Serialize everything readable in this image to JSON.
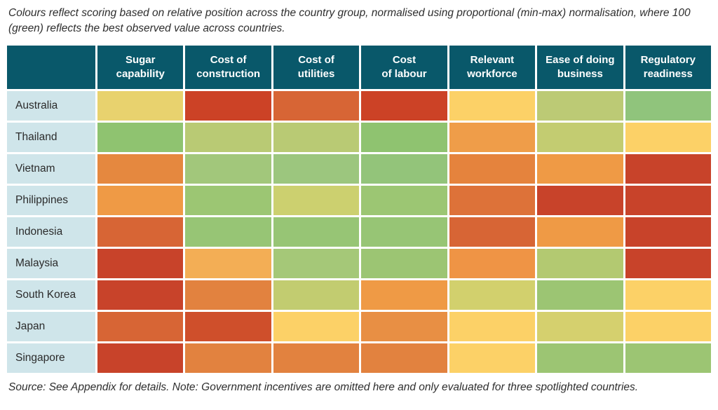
{
  "intro_note": "Colours reflect scoring based on relative position across the country group, normalised using proportional (min-max) normalisation, where 100 (green) reflects the best observed value across countries.",
  "source_note": "Source: See Appendix for details. Note: Government incentives are omitted here and only evaluated for three spotlighted countries.",
  "colors": {
    "header_bg": "#09586a",
    "header_text": "#ffffff",
    "row_label_bg": "#cfe5ea",
    "row_label_text": "#2b2b2b",
    "grid_gap": "#ffffff",
    "scale_best": "#8fc370",
    "scale_worst": "#c8432a"
  },
  "chart_data": {
    "type": "heatmap",
    "columns": [
      "Sugar\ncapability",
      "Cost of\nconstruction",
      "Cost of\nutilities",
      "Cost\nof labour",
      "Relevant\nworkforce",
      "Ease of doing\nbusiness",
      "Regulatory\nreadiness"
    ],
    "rows": [
      {
        "country": "Australia",
        "cell_colors": [
          "#e8d26e",
          "#cc4226",
          "#d76535",
          "#cc4226",
          "#fcd167",
          "#bcca75",
          "#90c47c"
        ]
      },
      {
        "country": "Thailand",
        "cell_colors": [
          "#8fc370",
          "#b9ca74",
          "#b9ca74",
          "#8fc370",
          "#ef9d49",
          "#c3cc71",
          "#fcd167"
        ]
      },
      {
        "country": "Vietnam",
        "cell_colors": [
          "#e5883f",
          "#a2c77b",
          "#9cc67e",
          "#93c47a",
          "#e5833d",
          "#ef9a45",
          "#c8432a"
        ]
      },
      {
        "country": "Philippines",
        "cell_colors": [
          "#ef9a45",
          "#9cc673",
          "#ccd06f",
          "#9cc673",
          "#dd7239",
          "#c8432a",
          "#c8432a"
        ]
      },
      {
        "country": "Indonesia",
        "cell_colors": [
          "#d76535",
          "#97c575",
          "#97c575",
          "#97c575",
          "#d76535",
          "#ef9a45",
          "#c8432a"
        ]
      },
      {
        "country": "Malaysia",
        "cell_colors": [
          "#c8432a",
          "#f3ae55",
          "#a5c878",
          "#9cc573",
          "#ef9445",
          "#b3c971",
          "#c8432a"
        ]
      },
      {
        "country": "South Korea",
        "cell_colors": [
          "#c8432a",
          "#e2823f",
          "#c2cc70",
          "#ef9a45",
          "#d2d06d",
          "#9cc573",
          "#fcd167"
        ]
      },
      {
        "country": "Japan",
        "cell_colors": [
          "#d76535",
          "#cf4f2b",
          "#fcd167",
          "#e88f44",
          "#fcd167",
          "#d5d06e",
          "#fcd167"
        ]
      },
      {
        "country": "Singapore",
        "cell_colors": [
          "#c8432a",
          "#e2823f",
          "#e2823f",
          "#e2823f",
          "#fcd167",
          "#9cc573",
          "#9cc573"
        ]
      }
    ]
  }
}
